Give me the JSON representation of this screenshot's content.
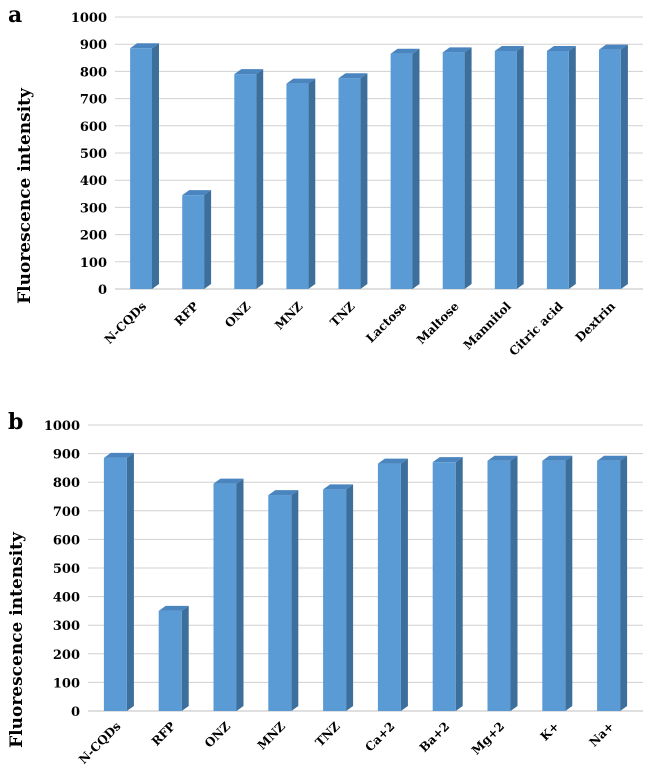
{
  "chart_data": [
    {
      "type": "bar",
      "panel": "a",
      "categories": [
        "N-CQDs",
        "RFP",
        "ONZ",
        "MNZ",
        "TNZ",
        "Lactose",
        "Maltose",
        "Mannitol",
        "Citric acid",
        "Dextrin"
      ],
      "values": [
        885,
        345,
        790,
        755,
        775,
        865,
        870,
        875,
        875,
        880
      ],
      "ylabel": "Fluorescence intensity",
      "ylim": [
        0,
        1000
      ],
      "yticks": [
        0,
        100,
        200,
        300,
        400,
        500,
        600,
        700,
        800,
        900,
        1000
      ],
      "grid": true,
      "bar_color": "#5b9bd5",
      "bar_side_color": "#3d6f9c",
      "bar_top_color": "#4a85bf"
    },
    {
      "type": "bar",
      "panel": "b",
      "categories": [
        "N-CQDs",
        "RFP",
        "ONZ",
        "MNZ",
        "TNZ",
        "Ca+2",
        "Ba+2",
        "Mg+2",
        "K+",
        "Na+"
      ],
      "values": [
        885,
        350,
        795,
        755,
        775,
        865,
        870,
        875,
        875,
        875
      ],
      "ylabel": "Fluorescence intensity",
      "ylim": [
        0,
        1000
      ],
      "yticks": [
        0,
        100,
        200,
        300,
        400,
        500,
        600,
        700,
        800,
        900,
        1000
      ],
      "grid": true,
      "bar_color": "#5b9bd5",
      "bar_side_color": "#3d6f9c",
      "bar_top_color": "#4a85bf"
    }
  ]
}
